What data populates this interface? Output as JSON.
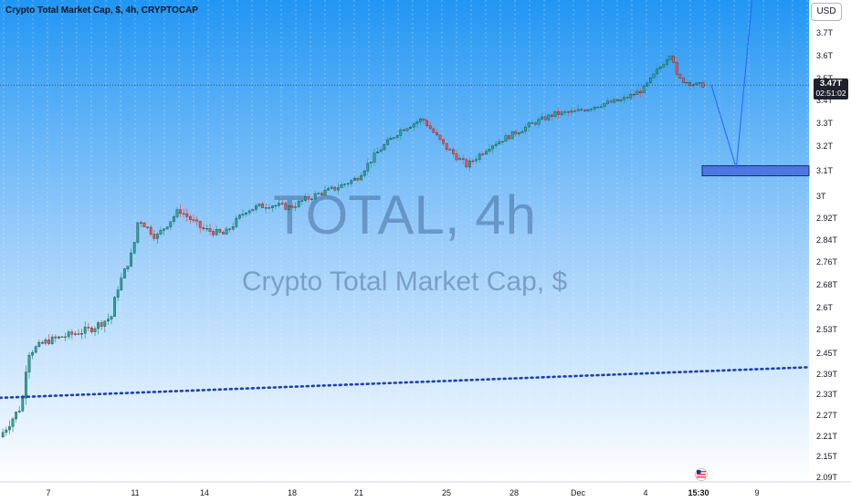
{
  "header": {
    "symbol_title": "Crypto Total Market Cap, $, 4h, CRYPTOCAP"
  },
  "toolbar": {
    "currency_label": "USD"
  },
  "price_tag": {
    "value": "3.47T",
    "countdown": "02:51:02"
  },
  "watermark": {
    "line1": "TOTAL, 4h",
    "line2": "Crypto Total Market Cap, $"
  },
  "colors": {
    "up_candle": "#26a69a",
    "down_candle": "#ef5350",
    "trendline": "#1f3fb0",
    "projection_line": "#2962ff",
    "target_zone_fill": "#3d5fd9",
    "background_top": "#2196f3",
    "background_bottom": "#ffffff"
  },
  "chart_data": {
    "type": "candlestick",
    "title": "Crypto Total Market Cap, $, 4h, CRYPTOCAP",
    "price_unit": "T USD",
    "y_axis_ticks": [
      "3.7T",
      "3.6T",
      "3.5T",
      "3.4T",
      "3.3T",
      "3.2T",
      "3.1T",
      "3T",
      "2.92T",
      "2.84T",
      "2.76T",
      "2.68T",
      "2.6T",
      "2.53T",
      "2.45T",
      "2.39T",
      "2.33T",
      "2.27T",
      "2.21T",
      "2.15T",
      "2.09T"
    ],
    "y_axis_values": [
      3.7,
      3.6,
      3.5,
      3.4,
      3.3,
      3.2,
      3.1,
      3.0,
      2.92,
      2.84,
      2.76,
      2.68,
      2.6,
      2.53,
      2.45,
      2.39,
      2.33,
      2.27,
      2.21,
      2.15,
      2.09
    ],
    "x_axis_ticks": [
      "7",
      "11",
      "14",
      "18",
      "21",
      "25",
      "28",
      "Dec",
      "4",
      "15:30",
      "9"
    ],
    "last_price": 3.47,
    "path_points": [
      {
        "x": "Nov 5",
        "y": 2.2
      },
      {
        "x": "Nov 6",
        "y": 2.3
      },
      {
        "x": "Nov 6",
        "y": 2.45
      },
      {
        "x": "Nov 7",
        "y": 2.49
      },
      {
        "x": "Nov 8",
        "y": 2.51
      },
      {
        "x": "Nov 9",
        "y": 2.53
      },
      {
        "x": "Nov 10",
        "y": 2.57
      },
      {
        "x": "Nov 10",
        "y": 2.66
      },
      {
        "x": "Nov 11",
        "y": 2.8
      },
      {
        "x": "Nov 11",
        "y": 2.92
      },
      {
        "x": "Nov 12",
        "y": 2.85
      },
      {
        "x": "Nov 13",
        "y": 2.95
      },
      {
        "x": "Nov 14",
        "y": 2.88
      },
      {
        "x": "Nov 15",
        "y": 2.86
      },
      {
        "x": "Nov 16",
        "y": 2.95
      },
      {
        "x": "Nov 17",
        "y": 2.97
      },
      {
        "x": "Nov 18",
        "y": 2.96
      },
      {
        "x": "Nov 19",
        "y": 3.0
      },
      {
        "x": "Nov 20",
        "y": 3.03
      },
      {
        "x": "Nov 21",
        "y": 3.07
      },
      {
        "x": "Nov 22",
        "y": 3.18
      },
      {
        "x": "Nov 23",
        "y": 3.27
      },
      {
        "x": "Nov 24",
        "y": 3.32
      },
      {
        "x": "Nov 25",
        "y": 3.2
      },
      {
        "x": "Nov 26",
        "y": 3.12
      },
      {
        "x": "Nov 27",
        "y": 3.2
      },
      {
        "x": "Nov 28",
        "y": 3.25
      },
      {
        "x": "Nov 29",
        "y": 3.3
      },
      {
        "x": "Nov 30",
        "y": 3.34
      },
      {
        "x": "Dec 1",
        "y": 3.35
      },
      {
        "x": "Dec 2",
        "y": 3.38
      },
      {
        "x": "Dec 3",
        "y": 3.4
      },
      {
        "x": "Dec 4",
        "y": 3.45
      },
      {
        "x": "Dec 5",
        "y": 3.62
      },
      {
        "x": "Dec 5",
        "y": 3.5
      },
      {
        "x": "Dec 6",
        "y": 3.47
      }
    ],
    "trendline": {
      "start": {
        "x": "Nov 5",
        "y": 2.32
      },
      "end": {
        "x": "Dec 8",
        "y": 2.41
      },
      "style": "dotted"
    },
    "projection": [
      {
        "x": "Dec 6",
        "y": 3.47
      },
      {
        "x": "Dec 7",
        "y": 3.11
      },
      {
        "x": "Dec 8",
        "y": 3.72
      }
    ],
    "target_zone": {
      "y_low": 3.08,
      "y_high": 3.12
    },
    "grid": "vertical dashed"
  }
}
